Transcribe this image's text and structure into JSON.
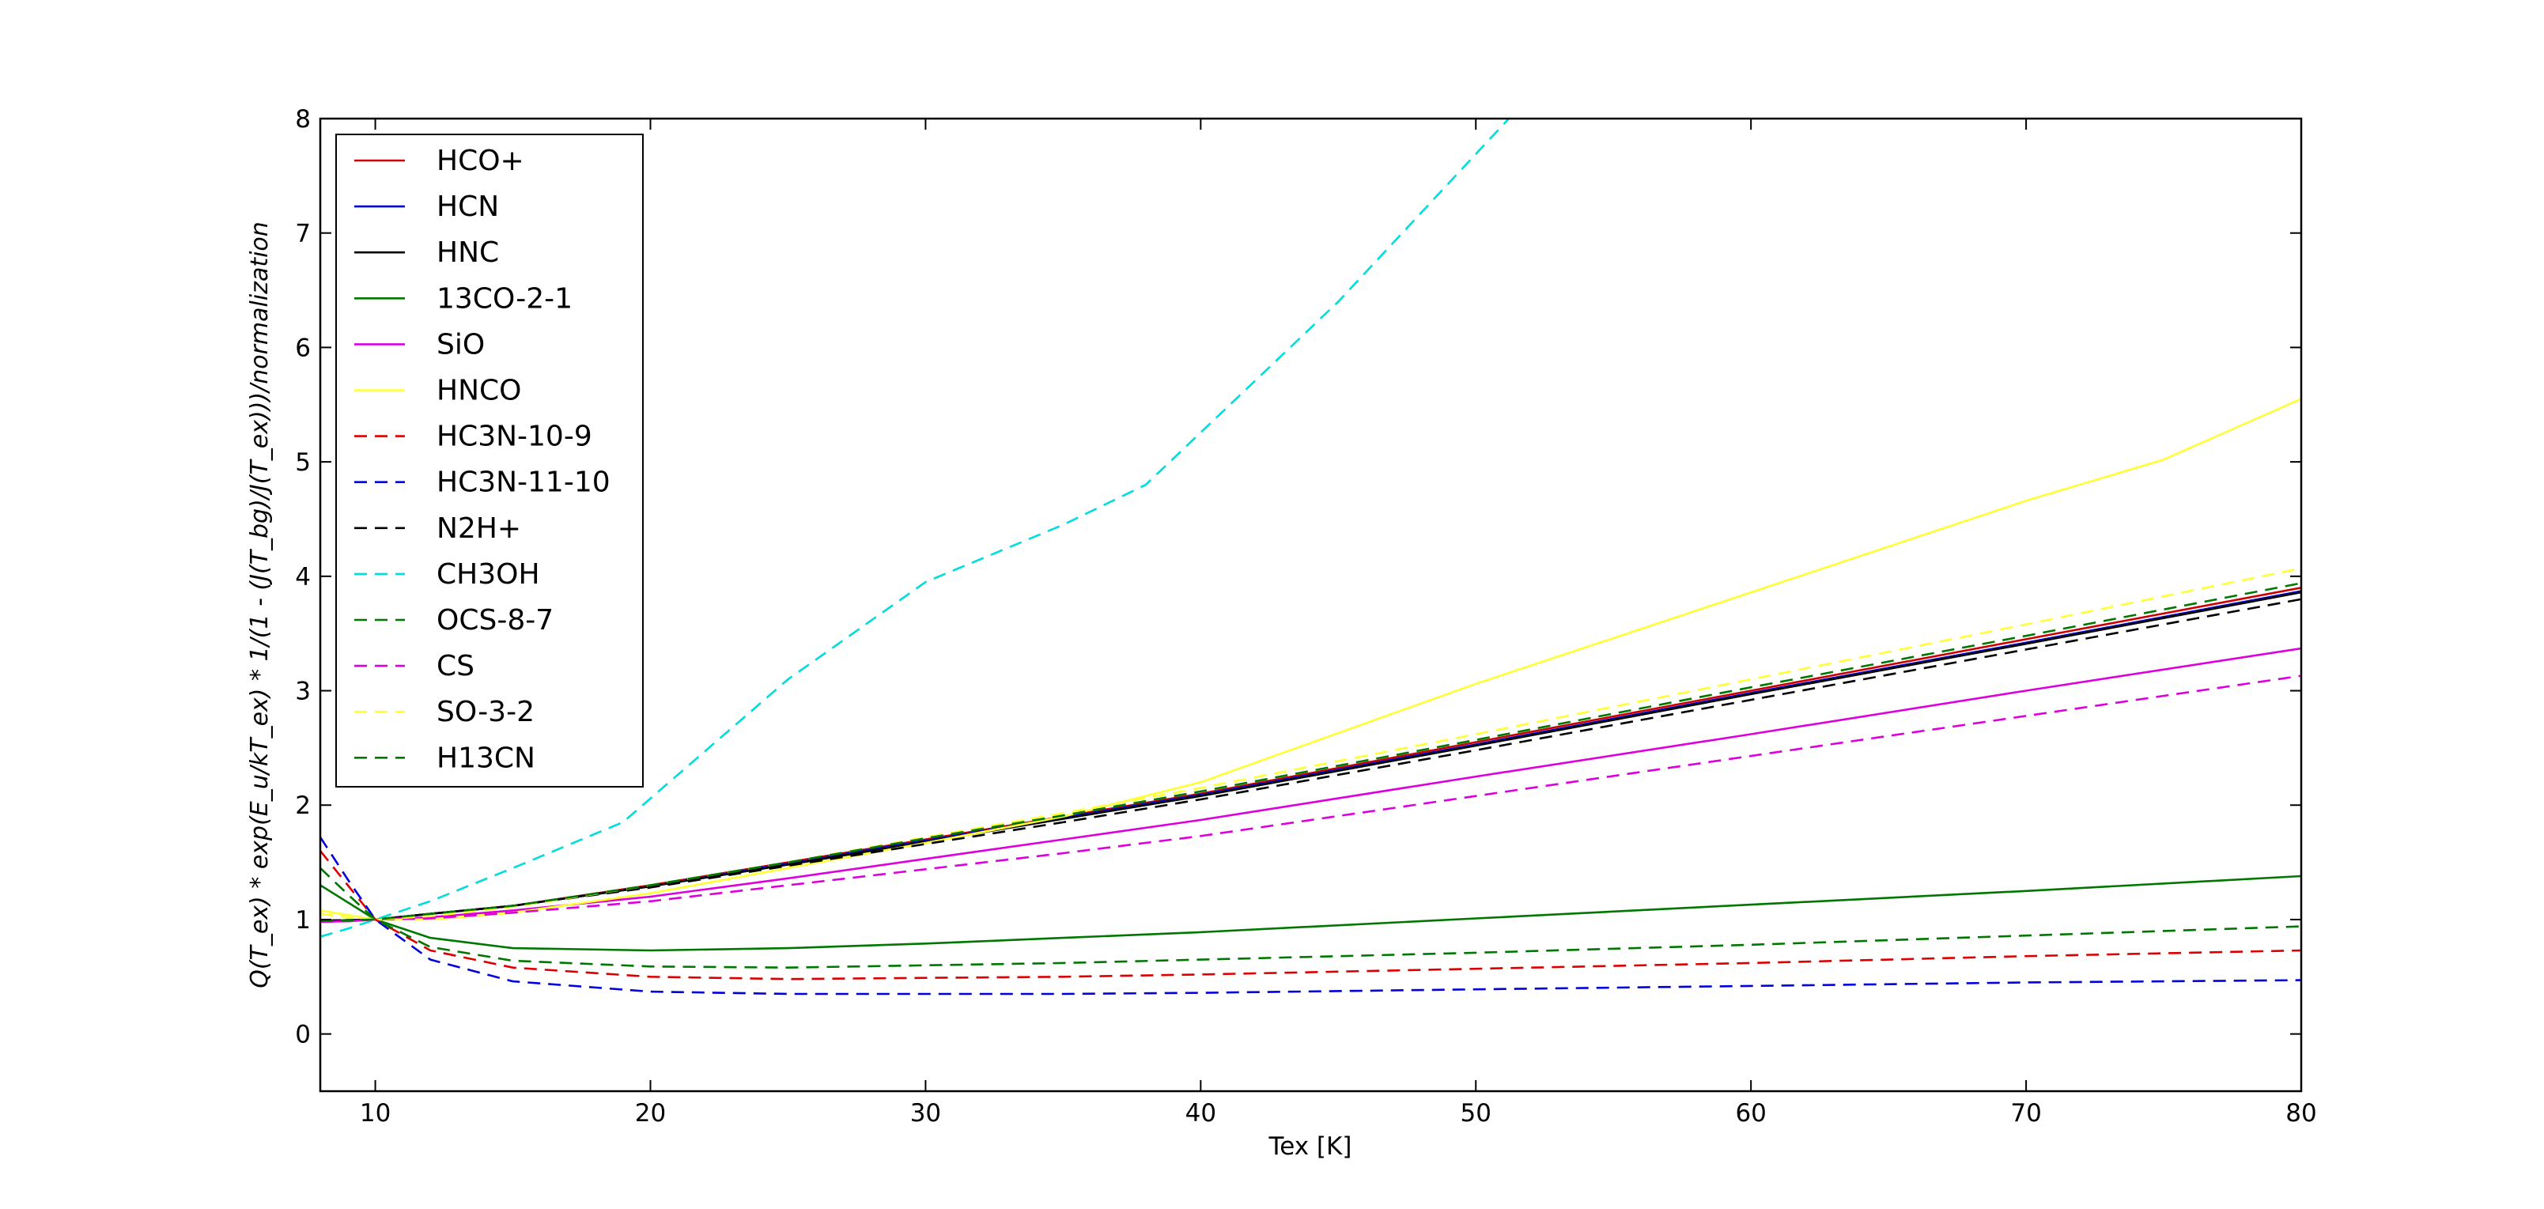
{
  "chart_data": {
    "type": "line",
    "title": "",
    "xlabel": "Tex [K]",
    "ylabel": "Q(T_ex) * exp(E_u/kT_ex) * 1/(1 - (J(T_bg)/J(T_ex)))/normalization",
    "xlim": [
      8,
      80
    ],
    "ylim": [
      -0.5,
      8
    ],
    "xticks": [
      10,
      20,
      30,
      40,
      50,
      60,
      70,
      80
    ],
    "yticks": [
      0,
      1,
      2,
      3,
      4,
      5,
      6,
      7,
      8
    ],
    "grid": false,
    "legend_position": "top-left",
    "series": [
      {
        "name": "HCO+",
        "color": "#cc0000",
        "dash": "solid",
        "x": [
          8,
          9,
          10,
          12,
          15,
          20,
          25,
          30,
          35,
          40,
          50,
          60,
          70,
          80
        ],
        "y": [
          0.99,
          0.995,
          1.0,
          1.05,
          1.12,
          1.3,
          1.5,
          1.7,
          1.9,
          2.1,
          2.55,
          3.0,
          3.45,
          3.9
        ]
      },
      {
        "name": "HCN",
        "color": "#0000cc",
        "dash": "solid",
        "x": [
          8,
          9,
          10,
          12,
          15,
          20,
          25,
          30,
          35,
          40,
          50,
          60,
          70,
          80
        ],
        "y": [
          0.99,
          0.995,
          1.0,
          1.05,
          1.12,
          1.29,
          1.49,
          1.69,
          1.89,
          2.09,
          2.53,
          2.98,
          3.42,
          3.87
        ]
      },
      {
        "name": "HNC",
        "color": "#000000",
        "dash": "solid",
        "x": [
          8,
          9,
          10,
          12,
          15,
          20,
          25,
          30,
          35,
          40,
          50,
          60,
          70,
          80
        ],
        "y": [
          0.99,
          0.995,
          1.0,
          1.05,
          1.12,
          1.29,
          1.48,
          1.68,
          1.88,
          2.08,
          2.52,
          2.97,
          3.41,
          3.86
        ]
      },
      {
        "name": "13CO-2-1",
        "color": "#007700",
        "dash": "solid",
        "x": [
          8,
          9,
          10,
          12,
          15,
          20,
          25,
          30,
          35,
          40,
          50,
          60,
          70,
          80
        ],
        "y": [
          1.3,
          1.15,
          1.0,
          0.84,
          0.75,
          0.73,
          0.75,
          0.79,
          0.84,
          0.89,
          1.01,
          1.13,
          1.25,
          1.38
        ]
      },
      {
        "name": "SiO",
        "color": "#dd00dd",
        "dash": "solid",
        "x": [
          8,
          9,
          10,
          12,
          15,
          20,
          25,
          30,
          35,
          40,
          50,
          60,
          70,
          80
        ],
        "y": [
          0.98,
          0.985,
          1.0,
          1.02,
          1.08,
          1.2,
          1.36,
          1.53,
          1.7,
          1.87,
          2.25,
          2.62,
          3.0,
          3.37
        ]
      },
      {
        "name": "HNCO",
        "color": "#ffff33",
        "dash": "solid",
        "x": [
          8,
          9,
          10,
          12,
          15,
          20,
          25,
          30,
          35,
          40,
          50,
          60,
          70,
          75,
          80
        ],
        "y": [
          1.08,
          1.04,
          1.0,
          1.0,
          1.06,
          1.23,
          1.45,
          1.67,
          1.9,
          2.2,
          3.06,
          3.86,
          4.66,
          5.02,
          5.55
        ]
      },
      {
        "name": "HC3N-10-9",
        "color": "#dd0000",
        "dash": "dashed",
        "x": [
          8,
          9,
          10,
          12,
          15,
          20,
          25,
          30,
          35,
          40,
          50,
          60,
          70,
          80
        ],
        "y": [
          1.6,
          1.3,
          1.0,
          0.73,
          0.58,
          0.5,
          0.48,
          0.49,
          0.5,
          0.52,
          0.57,
          0.62,
          0.68,
          0.73
        ]
      },
      {
        "name": "HC3N-11-10",
        "color": "#0000dd",
        "dash": "dashed",
        "x": [
          8,
          9,
          10,
          12,
          15,
          20,
          25,
          30,
          35,
          40,
          50,
          60,
          70,
          80
        ],
        "y": [
          1.72,
          1.35,
          1.0,
          0.65,
          0.46,
          0.37,
          0.35,
          0.35,
          0.35,
          0.36,
          0.39,
          0.42,
          0.45,
          0.47
        ]
      },
      {
        "name": "N2H+",
        "color": "#000000",
        "dash": "dashed",
        "x": [
          8,
          9,
          10,
          12,
          15,
          20,
          25,
          30,
          35,
          40,
          50,
          60,
          70,
          80
        ],
        "y": [
          0.99,
          0.995,
          1.0,
          1.05,
          1.12,
          1.28,
          1.47,
          1.66,
          1.85,
          2.05,
          2.48,
          2.92,
          3.36,
          3.8
        ]
      },
      {
        "name": "CH3OH",
        "color": "#00dddd",
        "dash": "dashed",
        "x": [
          8,
          9,
          10,
          12,
          15,
          19,
          25,
          30,
          35,
          38,
          45,
          51.2
        ],
        "y": [
          0.85,
          0.92,
          1.0,
          1.16,
          1.45,
          1.85,
          3.1,
          3.95,
          4.45,
          4.8,
          6.4,
          8.0
        ]
      },
      {
        "name": "OCS-8-7",
        "color": "#007700",
        "dash": "dashed",
        "x": [
          8,
          9,
          10,
          12,
          15,
          20,
          25,
          30,
          35,
          40,
          50,
          60,
          70,
          80
        ],
        "y": [
          1.45,
          1.22,
          1.0,
          0.76,
          0.64,
          0.59,
          0.58,
          0.6,
          0.62,
          0.65,
          0.71,
          0.78,
          0.86,
          0.94
        ]
      },
      {
        "name": "CS",
        "color": "#dd00dd",
        "dash": "dashed",
        "x": [
          8,
          9,
          10,
          12,
          15,
          20,
          25,
          30,
          35,
          40,
          50,
          60,
          70,
          80
        ],
        "y": [
          0.98,
          0.985,
          1.0,
          1.01,
          1.06,
          1.16,
          1.3,
          1.44,
          1.58,
          1.73,
          2.08,
          2.43,
          2.78,
          3.13
        ]
      },
      {
        "name": "SO-3-2",
        "color": "#ffff33",
        "dash": "dashed",
        "x": [
          8,
          9,
          10,
          12,
          15,
          20,
          25,
          30,
          35,
          40,
          50,
          60,
          70,
          80
        ],
        "y": [
          1.05,
          1.02,
          1.0,
          1.03,
          1.11,
          1.3,
          1.5,
          1.72,
          1.93,
          2.15,
          2.62,
          3.1,
          3.58,
          4.07
        ]
      },
      {
        "name": "H13CN",
        "color": "#007700",
        "dash": "dashed",
        "x": [
          8,
          9,
          10,
          12,
          15,
          20,
          25,
          30,
          35,
          40,
          50,
          60,
          70,
          80
        ],
        "y": [
          0.99,
          0.995,
          1.0,
          1.05,
          1.12,
          1.3,
          1.5,
          1.71,
          1.91,
          2.12,
          2.57,
          3.03,
          3.48,
          3.94
        ]
      }
    ]
  }
}
